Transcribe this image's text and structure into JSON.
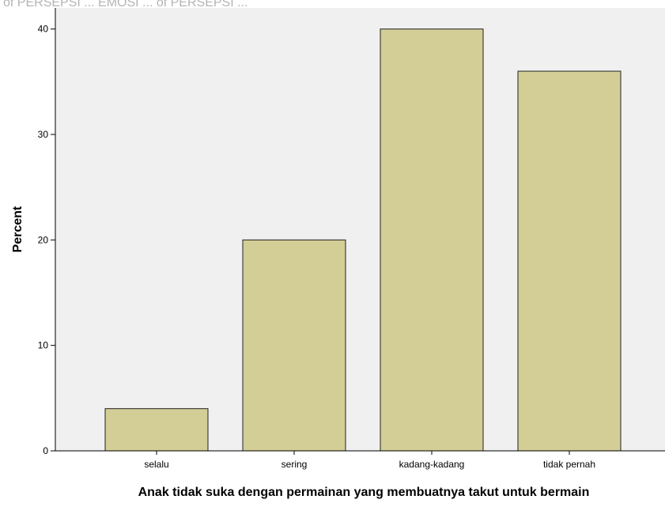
{
  "chart_data": {
    "type": "bar",
    "categories": [
      "selalu",
      "sering",
      "kadang-kadang",
      "tidak pernah"
    ],
    "values": [
      4,
      20,
      40,
      36
    ],
    "xlabel": "Anak tidak suka dengan permainan yang membuatnya takut untuk bermain",
    "ylabel": "Percent",
    "ylim": [
      0,
      42
    ],
    "yticks": [
      0,
      10,
      20,
      30,
      40
    ],
    "grid": false,
    "legend": "none",
    "colors": {
      "bar_fill": "#d3cd96",
      "bar_stroke": "#222222",
      "plot_background": "#f0f0f0"
    }
  },
  "header_strip": "of PERSEPSI ... EMOSI ... of PERSEPSI ..."
}
